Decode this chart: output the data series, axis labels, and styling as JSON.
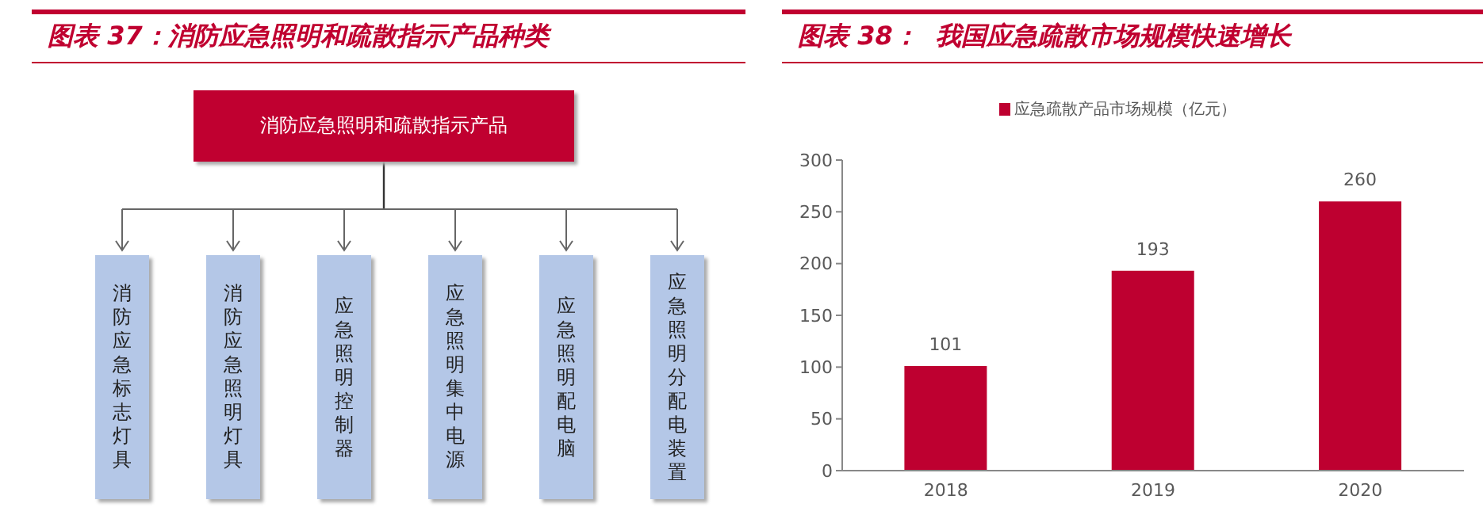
{
  "chart_data": [
    {
      "type": "other",
      "title": "图表 37：消防应急照明和疏散指示产品种类",
      "annotations": [
        "消防应急照明和疏散指示产品",
        "消防应急标志灯具",
        "消防应急照明灯具",
        "应急照明控制器",
        "应急照明集中电源",
        "应急照明配电脑",
        "应急照明分配电装置"
      ]
    },
    {
      "type": "bar",
      "title": "图表 38：  我国应急疏散市场规模快速增长",
      "categories": [
        "2018",
        "2019",
        "2020"
      ],
      "series": [
        {
          "name": "应急疏散产品市场规模（亿元）",
          "color": "#be0030",
          "values": [
            101,
            193,
            260
          ]
        }
      ],
      "ylim": [
        0,
        300
      ],
      "yticks": [
        0,
        50,
        100,
        150,
        200,
        250,
        300
      ],
      "data_labels": true,
      "legend": "top",
      "grid": false
    }
  ]
}
